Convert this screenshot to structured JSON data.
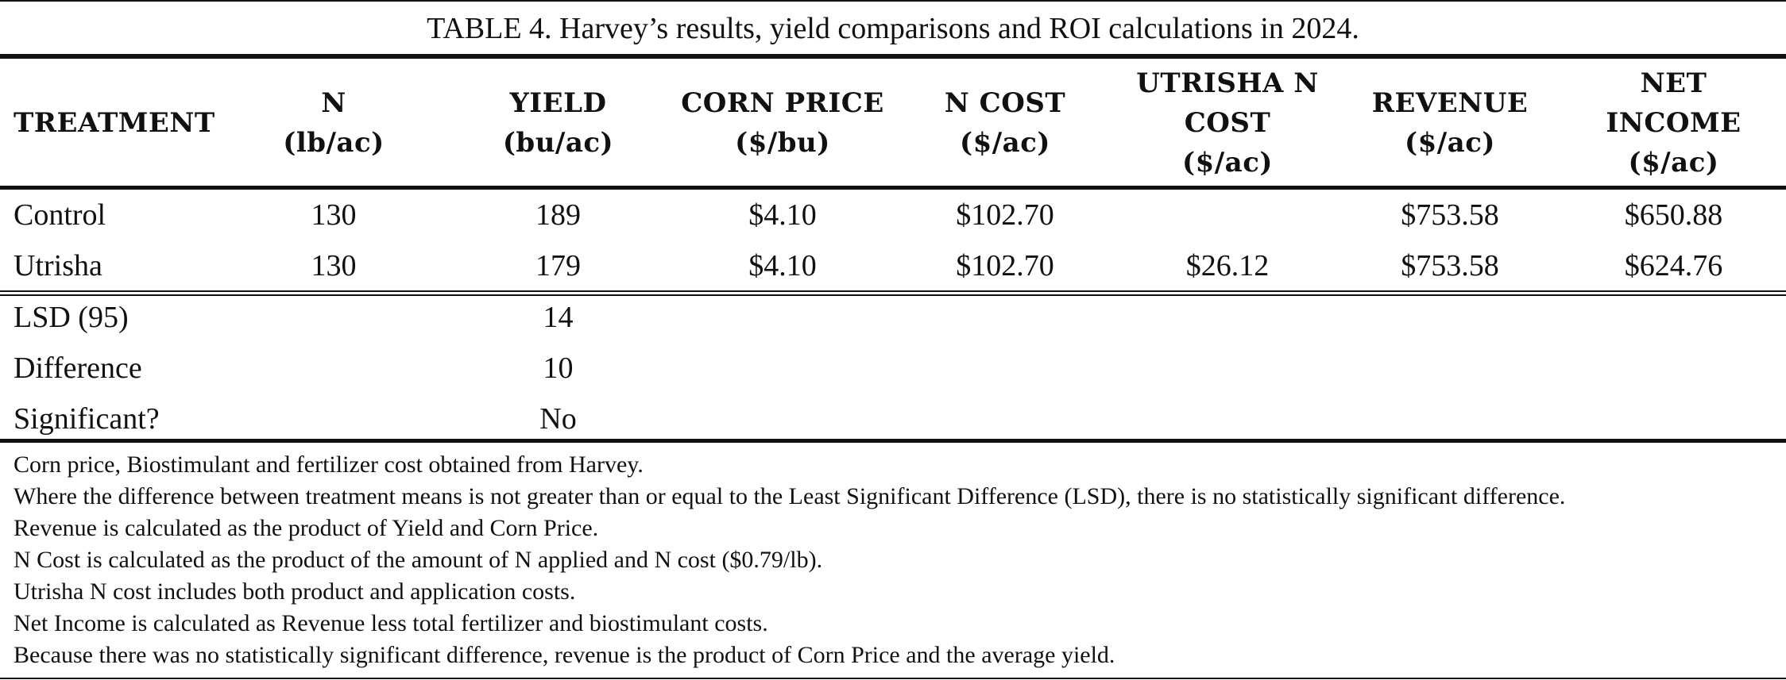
{
  "table": {
    "title": "TABLE 4. Harvey’s results, yield comparisons and ROI calculations in 2024.",
    "headers": [
      [
        "TREATMENT"
      ],
      [
        "N",
        "(lb/ac)"
      ],
      [
        "YIELD",
        "(bu/ac)"
      ],
      [
        "CORN PRICE",
        "($/bu)"
      ],
      [
        "N COST",
        "($/ac)"
      ],
      [
        "UTRISHA N",
        "COST",
        "($/ac)"
      ],
      [
        "REVENUE",
        "($/ac)"
      ],
      [
        "NET",
        "INCOME",
        "($/ac)"
      ]
    ],
    "rows": [
      [
        "Control",
        "130",
        "189",
        "$4.10",
        "$102.70",
        "",
        "$753.58",
        "$650.88"
      ],
      [
        "Utrisha",
        "130",
        "179",
        "$4.10",
        "$102.70",
        "$26.12",
        "$753.58",
        "$624.76"
      ]
    ],
    "stats": [
      [
        "LSD (95)",
        "14"
      ],
      [
        "Difference",
        "10"
      ],
      [
        "Significant?",
        "No"
      ]
    ],
    "notes": [
      "Corn price, Biostimulant and fertilizer cost obtained from Harvey.",
      "Where the difference between treatment means is not greater than or equal to the Least Significant Difference (LSD), there is no statistically significant difference.",
      "Revenue is calculated as the product of Yield and Corn Price.",
      "N Cost is calculated as the product of the amount of N applied and N cost ($0.79/lb).",
      "Utrisha N cost includes both product and application costs.",
      "Net Income is calculated as Revenue less total fertilizer and biostimulant costs.",
      "Because there was no statistically significant difference, revenue is the product of Corn Price and the average yield."
    ]
  }
}
